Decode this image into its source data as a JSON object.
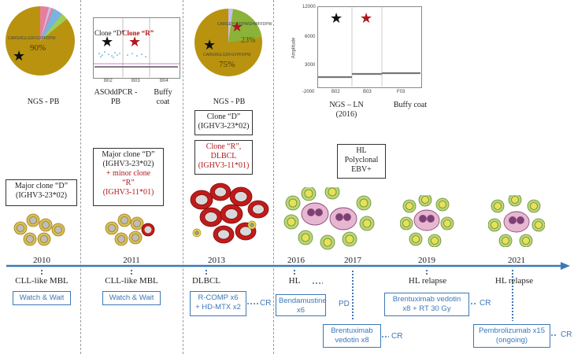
{
  "panels": {
    "ngs_pb_2010": {
      "pie_pct": "90%",
      "seq_label": "CARGRGLGDFGVPFDPW",
      "caption": "NGS - PB"
    },
    "ddpcr_2011": {
      "clone_d": "Clone “D”",
      "clone_r": "Clone “R”",
      "ch_labels": [
        "B02",
        "B03",
        "B04"
      ],
      "caption_left": "ASOddPCR -\nPB",
      "caption_right": "Buffy\ncoat"
    },
    "ngs_pb_2013": {
      "pie_pct_major": "75%",
      "pie_pct_minor": "23%",
      "seq_top": "CARGEYVYDPWGHWFFDPW",
      "seq_bottom": "CARGRGLGDFGVPFDPW",
      "caption": "NGS - PB"
    },
    "ngs_ln_2016": {
      "y_ticks": [
        "12000",
        "6000",
        "3000",
        "-2000"
      ],
      "y_axis": "Amplitude",
      "ch_labels": [
        "B02",
        "B03",
        "F03"
      ],
      "caption_left": "NGS – LN\n(2016)",
      "caption_right": "Buffy coat"
    }
  },
  "clone_boxes": {
    "box_2010": {
      "line1": "Major clone “D”",
      "line2": "(IGHV3-23*02)"
    },
    "box_2011": {
      "line1": "Major clone “D”",
      "line2": "(IGHV3-23*02)",
      "line3": "+ minor clone",
      "line4": "“R”",
      "line5": "(IGHV3-11*01)"
    },
    "box_2013_d": {
      "line1": "Clone “D”",
      "line2": "(IGHV3-23*02)"
    },
    "box_2013_r": {
      "line1": "Clone “R”,",
      "line2": "DLBCL",
      "line3": "(IGHV3-11*01)"
    },
    "box_hl": {
      "line1": "HL",
      "line2": "Polyclonal",
      "line3": "EBV+"
    }
  },
  "timeline": {
    "years": [
      "2010",
      "2011",
      "2013",
      "2016",
      "2017",
      "2019",
      "2021"
    ],
    "diagnoses": [
      "CLL-like MBL",
      "CLL-like MBL",
      "DLBCL",
      "HL",
      "HL relapse",
      "HL relapse"
    ]
  },
  "treatments": {
    "t_2010": "Watch & Wait",
    "t_2011": "Watch & Wait",
    "t_2013": "R-COMP x6\n+ HD-MTX x2",
    "t_2013_outcome": "CR",
    "t_2016": "Bendamustine\nx6",
    "t_2016_outcome": "PD",
    "t_2017": "Brentuximab\nvedotin x8",
    "t_2017_outcome": "CR",
    "t_2019": "Brentuximab vedotin\nx8 + RT 30 Gy",
    "t_2019_outcome": "CR",
    "t_2021": "Pembrolizumab x15\n(ongoing)",
    "t_2021_outcome": "CR"
  },
  "colors": {
    "timeline": "#3c78b8",
    "clone_d_star": "#111111",
    "clone_r_star": "#b0171b",
    "pie_gold": "#b9930f",
    "pie_green": "#8bb33a",
    "cll_cell_rim": "#caa93a",
    "dlbcl_red": "#c21a1a",
    "hl_pink": "#e7b7d2",
    "bystander_yellow": "#e9e05a"
  }
}
